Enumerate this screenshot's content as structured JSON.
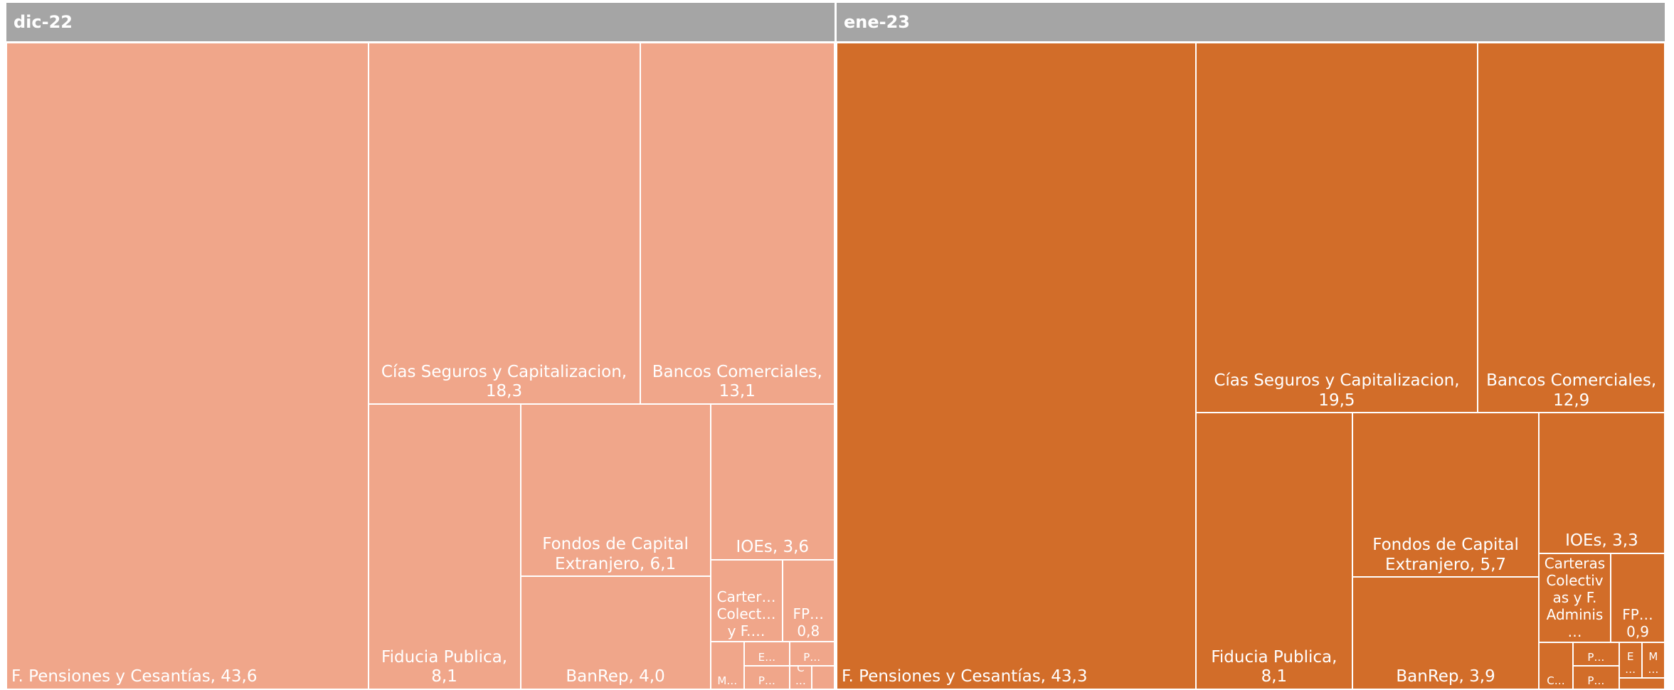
{
  "chart_data": {
    "type": "treemap",
    "groups": [
      {
        "name": "dic-22",
        "color": "#f0a68a",
        "labels": [
          "F. Pensiones y Cesantías, 43,6",
          "Cías Seguros y Capitalizacion, 18,3",
          "Bancos Comerciales, 13,1",
          "Fiducia Publica, 8,1",
          "Fondos de Capital Extranjero, 6,1",
          "BanRep, 4,0",
          "IOEs, 3,6",
          "Carter… Colect… y F.…",
          "FP… 0,8",
          "M…",
          "E…",
          "P…",
          "P…",
          "C…",
          null
        ],
        "values": [
          43.6,
          18.3,
          13.1,
          8.1,
          6.1,
          4.0,
          3.6,
          1.1,
          0.8,
          0.3,
          0.2,
          0.2,
          0.2,
          0.1,
          0.1
        ]
      },
      {
        "name": "ene-23",
        "color": "#d26d29",
        "labels": [
          "F. Pensiones y Cesantías, 43,3",
          "Cías Seguros y Capitalizacion, 19,5",
          "Bancos Comerciales, 12,9",
          "Fiducia Publica, 8,1",
          "Fondos de Capital Extranjero, 5,7",
          "BanRep, 3,9",
          "IOEs, 3,3",
          "Carteras Colectivas y F. Adminis…",
          "FP… 0,9",
          "C…",
          "P…",
          "P…",
          "E…",
          "M…",
          null
        ],
        "values": [
          43.3,
          19.5,
          12.9,
          8.1,
          5.7,
          3.9,
          3.3,
          1.2,
          0.9,
          0.3,
          0.2,
          0.2,
          0.15,
          0.15,
          0.1
        ]
      }
    ]
  }
}
